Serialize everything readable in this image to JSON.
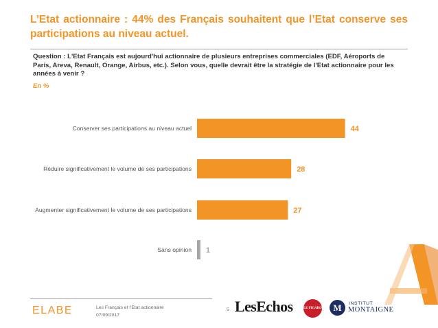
{
  "title": "L’Etat actionnaire : 44% des Français souhaitent que l’Etat conserve ses participations au niveau actuel.",
  "question": "Question : L'Etat Français est aujourd'hui actionnaire de plusieurs entreprises commerciales (EDF, Aéroports de Paris, Areva, Renault, Orange, Airbus, etc.). Selon vous, quelle devrait être la stratégie de l'Etat actionnaire pour les années à venir ?",
  "unit": "En %",
  "colors": {
    "accent": "#f39427",
    "muted": "#a6a6a6"
  },
  "chart_data": {
    "type": "bar",
    "orientation": "horizontal",
    "categories": [
      "Conserver ses participations au niveau actuel",
      "Réduire significativement le volume de ses participations",
      "Augmenter significativement le volume de ses participations",
      "Sans opinion"
    ],
    "values": [
      44,
      28,
      27,
      1
    ],
    "value_labels": [
      "44",
      "28",
      "27",
      "1"
    ],
    "bar_colors": [
      "#f39427",
      "#f39427",
      "#f39427",
      "#a6a6a6"
    ],
    "xlim": [
      0,
      50
    ],
    "grid": false,
    "title": "",
    "xlabel": "",
    "ylabel": ""
  },
  "footer": {
    "brand": "ELABE",
    "line1": "Les Français et l’Etat actionnaire",
    "line2": "07/09/2017",
    "page": "5"
  },
  "logos": {
    "les_echos": "LesEchos",
    "figaro": "LE FIGARO",
    "institut_top": "INSTITUT",
    "institut_bottom": "MONTAIGNE",
    "institut_mark": "M"
  }
}
